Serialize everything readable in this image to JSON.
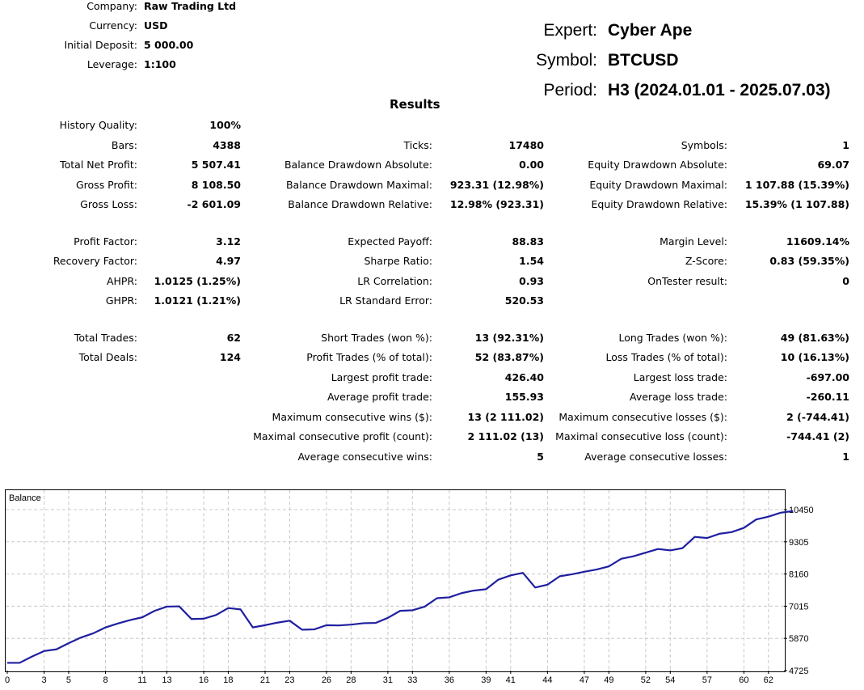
{
  "account": [
    {
      "label": "Company:",
      "value": "Raw Trading Ltd"
    },
    {
      "label": "Currency:",
      "value": "USD"
    },
    {
      "label": "Initial Deposit:",
      "value": "5 000.00"
    },
    {
      "label": "Leverage:",
      "value": "1:100"
    }
  ],
  "header": {
    "expert_label": "Expert:",
    "expert": "Cyber Ape",
    "symbol_label": "Symbol:",
    "symbol": "BTCUSD",
    "period_label": "Period:",
    "period": "H3 (2024.01.01 - 2025.07.03)"
  },
  "results_title": "Results",
  "rows": [
    [
      {
        "label": "History Quality:",
        "value": "100%"
      },
      null,
      null
    ],
    [
      {
        "label": "Bars:",
        "value": "4388"
      },
      {
        "label": "Ticks:",
        "value": "17480"
      },
      {
        "label": "Symbols:",
        "value": "1"
      }
    ],
    [
      {
        "label": "Total Net Profit:",
        "value": "5 507.41"
      },
      {
        "label": "Balance Drawdown Absolute:",
        "value": "0.00"
      },
      {
        "label": "Equity Drawdown Absolute:",
        "value": "69.07"
      }
    ],
    [
      {
        "label": "Gross Profit:",
        "value": "8 108.50"
      },
      {
        "label": "Balance Drawdown Maximal:",
        "value": "923.31 (12.98%)"
      },
      {
        "label": "Equity Drawdown Maximal:",
        "value": "1 107.88 (15.39%)"
      }
    ],
    [
      {
        "label": "Gross Loss:",
        "value": "-2 601.09"
      },
      {
        "label": "Balance Drawdown Relative:",
        "value": "12.98% (923.31)"
      },
      {
        "label": "Equity Drawdown Relative:",
        "value": "15.39% (1 107.88)"
      }
    ],
    [
      {
        "label": "Profit Factor:",
        "value": "3.12"
      },
      {
        "label": "Expected Payoff:",
        "value": "88.83"
      },
      {
        "label": "Margin Level:",
        "value": "11609.14%"
      }
    ],
    [
      {
        "label": "Recovery Factor:",
        "value": "4.97"
      },
      {
        "label": "Sharpe Ratio:",
        "value": "1.54"
      },
      {
        "label": "Z-Score:",
        "value": "0.83 (59.35%)"
      }
    ],
    [
      {
        "label": "AHPR:",
        "value": "1.0125 (1.25%)"
      },
      {
        "label": "LR Correlation:",
        "value": "0.93"
      },
      {
        "label": "OnTester result:",
        "value": "0"
      }
    ],
    [
      {
        "label": "GHPR:",
        "value": "1.0121 (1.21%)"
      },
      {
        "label": "LR Standard Error:",
        "value": "520.53"
      },
      null
    ],
    [
      {
        "label": "Total Trades:",
        "value": "62"
      },
      {
        "label": "Short Trades (won %):",
        "value": "13 (92.31%)"
      },
      {
        "label": "Long Trades (won %):",
        "value": "49 (81.63%)"
      }
    ],
    [
      {
        "label": "Total Deals:",
        "value": "124"
      },
      {
        "label": "Profit Trades (% of total):",
        "value": "52 (83.87%)"
      },
      {
        "label": "Loss Trades (% of total):",
        "value": "10 (16.13%)"
      }
    ],
    [
      null,
      {
        "label": "Largest profit trade:",
        "value": "426.40"
      },
      {
        "label": "Largest loss trade:",
        "value": "-697.00"
      }
    ],
    [
      null,
      {
        "label": "Average profit trade:",
        "value": "155.93"
      },
      {
        "label": "Average loss trade:",
        "value": "-260.11"
      }
    ],
    [
      null,
      {
        "label": "Maximum consecutive wins ($):",
        "value": "13 (2 111.02)"
      },
      {
        "label": "Maximum consecutive losses ($):",
        "value": "2 (-744.41)"
      }
    ],
    [
      null,
      {
        "label": "Maximal consecutive profit (count):",
        "value": "2 111.02 (13)"
      },
      {
        "label": "Maximal consecutive loss (count):",
        "value": "-744.41 (2)"
      }
    ],
    [
      null,
      {
        "label": "Average consecutive wins:",
        "value": "5"
      },
      {
        "label": "Average consecutive losses:",
        "value": "1"
      }
    ]
  ],
  "chart_data": {
    "type": "line",
    "title": "Balance",
    "xlabel": "",
    "ylabel": "",
    "x_ticks": [
      "0",
      "3",
      "5",
      "8",
      "11",
      "13",
      "16",
      "18",
      "21",
      "23",
      "26",
      "28",
      "31",
      "33",
      "36",
      "39",
      "41",
      "44",
      "47",
      "49",
      "52",
      "54",
      "57",
      "60",
      "62"
    ],
    "y_ticks": [
      4725,
      5870,
      7015,
      8160,
      9305,
      10450
    ],
    "ylim": [
      4725,
      10450
    ],
    "xlim": [
      0,
      63
    ],
    "grid": true,
    "line_color": "#1f1fa0",
    "series": [
      {
        "values": [
          5000,
          5000,
          5220,
          5420,
          5480,
          5700,
          5900,
          6050,
          6260,
          6400,
          6520,
          6620,
          6850,
          7000,
          7010,
          6560,
          6570,
          6700,
          6950,
          6900,
          6260,
          6340,
          6430,
          6500,
          6180,
          6190,
          6340,
          6330,
          6360,
          6410,
          6420,
          6600,
          6850,
          6870,
          7000,
          7300,
          7330,
          7480,
          7570,
          7620,
          7960,
          8110,
          8200,
          7680,
          7780,
          8080,
          8150,
          8240,
          8320,
          8430,
          8700,
          8790,
          8920,
          9050,
          9000,
          9080,
          9480,
          9440,
          9590,
          9650,
          9800,
          10100,
          10200,
          10340,
          10400
        ]
      }
    ]
  }
}
